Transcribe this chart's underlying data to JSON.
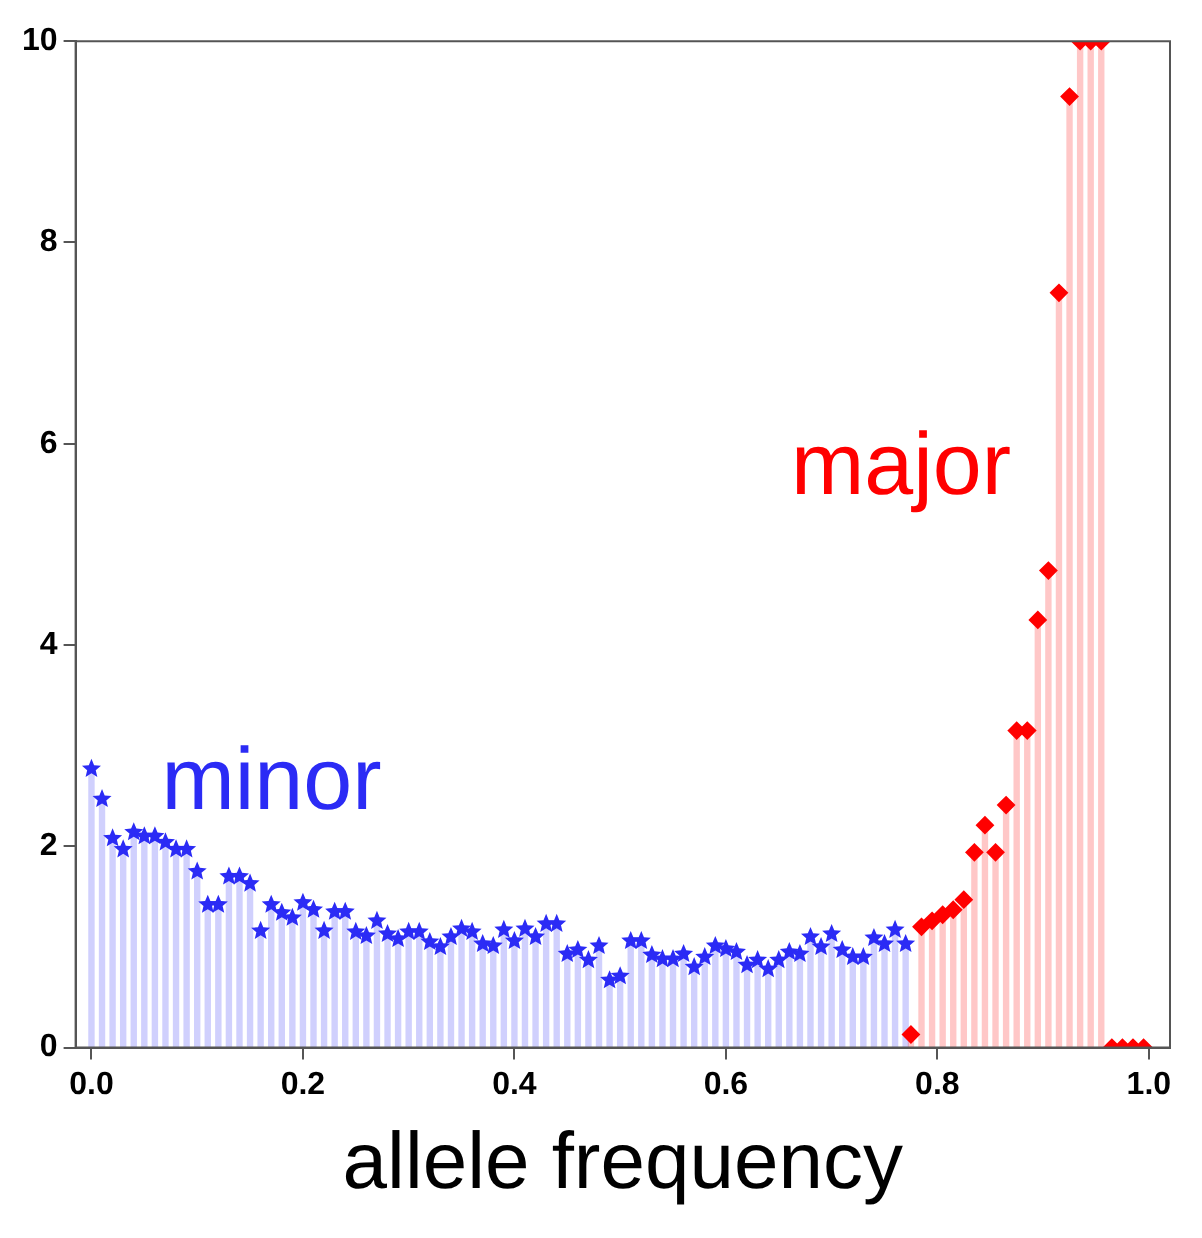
{
  "chart_data": {
    "type": "lollipop",
    "xlabel": "allele frequency",
    "xlim": [
      -0.015,
      1.02
    ],
    "xticks": [
      {
        "value": 0,
        "label": "0.0"
      },
      {
        "value": 0.2,
        "label": "0.2"
      },
      {
        "value": 0.4,
        "label": "0.4"
      },
      {
        "value": 0.6,
        "label": "0.6"
      },
      {
        "value": 0.8,
        "label": "0.8"
      },
      {
        "value": 1,
        "label": "1.0"
      }
    ],
    "ylim": [
      0,
      10
    ],
    "yticks": [
      0,
      2,
      4,
      6,
      8,
      10
    ],
    "grid": false,
    "series": [
      {
        "name": "minor",
        "color": "#2b2bf5",
        "marker": "star",
        "x": [
          0,
          0.01,
          0.02,
          0.03,
          0.04,
          0.05,
          0.06,
          0.07,
          0.08,
          0.09,
          0.1,
          0.11,
          0.12,
          0.13,
          0.14,
          0.15,
          0.16,
          0.17,
          0.18,
          0.19,
          0.2,
          0.21,
          0.22,
          0.23,
          0.24,
          0.25,
          0.26,
          0.27,
          0.28,
          0.29,
          0.3,
          0.31,
          0.32,
          0.33,
          0.34,
          0.35,
          0.36,
          0.37,
          0.38,
          0.39,
          0.4,
          0.41,
          0.42,
          0.43,
          0.44,
          0.45,
          0.46,
          0.47,
          0.48,
          0.49,
          0.5,
          0.51,
          0.52,
          0.53,
          0.54,
          0.55,
          0.56,
          0.57,
          0.58,
          0.59,
          0.6,
          0.61,
          0.62,
          0.63,
          0.64,
          0.65,
          0.66,
          0.67,
          0.68,
          0.69,
          0.7,
          0.71,
          0.72,
          0.73,
          0.74,
          0.75,
          0.76,
          0.77
        ],
        "values": [
          2.77,
          2.47,
          2.08,
          1.97,
          2.14,
          2.1,
          2.1,
          2.04,
          1.97,
          1.97,
          1.75,
          1.42,
          1.42,
          1.7,
          1.7,
          1.63,
          1.16,
          1.42,
          1.34,
          1.29,
          1.44,
          1.37,
          1.16,
          1.35,
          1.35,
          1.15,
          1.11,
          1.26,
          1.13,
          1.08,
          1.15,
          1.15,
          1.05,
          1.0,
          1.1,
          1.18,
          1.15,
          1.03,
          1.01,
          1.17,
          1.06,
          1.18,
          1.1,
          1.23,
          1.23,
          0.93,
          0.97,
          0.87,
          1.01,
          0.67,
          0.71,
          1.06,
          1.06,
          0.92,
          0.88,
          0.88,
          0.93,
          0.8,
          0.9,
          1.01,
          0.98,
          0.95,
          0.82,
          0.87,
          0.78,
          0.87,
          0.95,
          0.93,
          1.1,
          1.0,
          1.13,
          0.97,
          0.9,
          0.9,
          1.09,
          1.03,
          1.17,
          1.03
        ]
      },
      {
        "name": "major",
        "color": "#ff0000",
        "marker": "diamond",
        "x": [
          0.775,
          0.785,
          0.795,
          0.805,
          0.815,
          0.825,
          0.835,
          0.845,
          0.855,
          0.865,
          0.875,
          0.885,
          0.895,
          0.905,
          0.915,
          0.925,
          0.935,
          0.945,
          0.955,
          0.965,
          0.975,
          0.985,
          0.995
        ],
        "values": [
          0.13,
          1.2,
          1.26,
          1.32,
          1.37,
          1.47,
          1.94,
          2.21,
          1.94,
          2.41,
          3.15,
          3.15,
          4.25,
          4.74,
          7.5,
          9.45,
          10,
          10,
          10,
          0,
          0,
          0,
          0
        ]
      }
    ]
  }
}
